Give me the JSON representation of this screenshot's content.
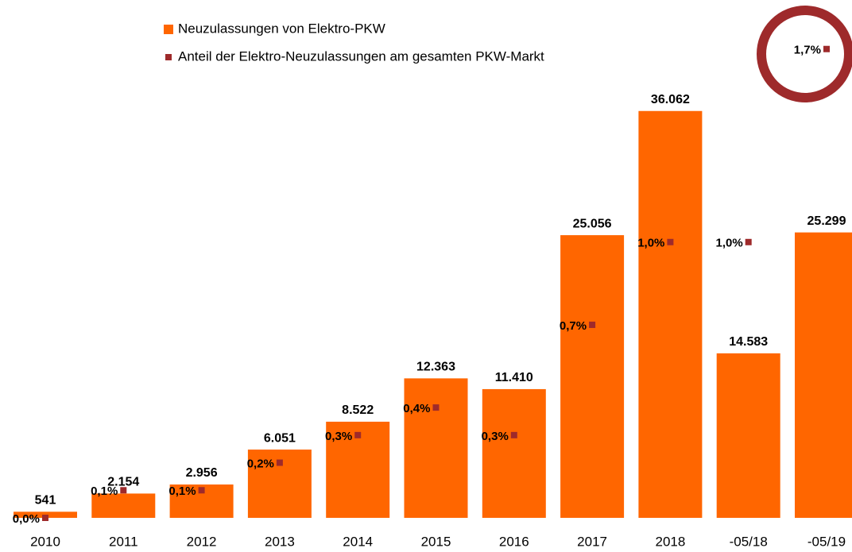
{
  "chart_data": {
    "type": "bar",
    "categories": [
      "2010",
      "2011",
      "2012",
      "2013",
      "2014",
      "2015",
      "2016",
      "2017",
      "2018",
      "-05/18",
      "-05/19"
    ],
    "series": [
      {
        "name": "Neuzulassungen von Elektro-PKW",
        "color": "#ff6600",
        "values": [
          541,
          2154,
          2956,
          6051,
          8522,
          12363,
          11410,
          25056,
          36062,
          14583,
          25299
        ],
        "value_labels": [
          "541",
          "2.154",
          "2.956",
          "6.051",
          "8.522",
          "12.363",
          "11.410",
          "25.056",
          "36.062",
          "14.583",
          "25.299"
        ]
      },
      {
        "name": "Anteil der Elektro-Neuzulassungen am gesamten PKW-Markt",
        "color": "#9e2a2b",
        "type": "marker",
        "axis": "y2",
        "values": [
          0.0,
          0.1,
          0.1,
          0.2,
          0.3,
          0.4,
          0.3,
          0.7,
          1.0,
          1.0,
          1.7
        ],
        "value_labels": [
          "0,0%",
          "0,1%",
          "0,1%",
          "0,2%",
          "0,3%",
          "0,4%",
          "0,3%",
          "0,7%",
          "1,0%",
          "1,0%",
          "1,7%"
        ]
      }
    ],
    "ylim": [
      0,
      44000
    ],
    "y2lim": [
      0,
      1.8
    ],
    "legend": "top"
  }
}
